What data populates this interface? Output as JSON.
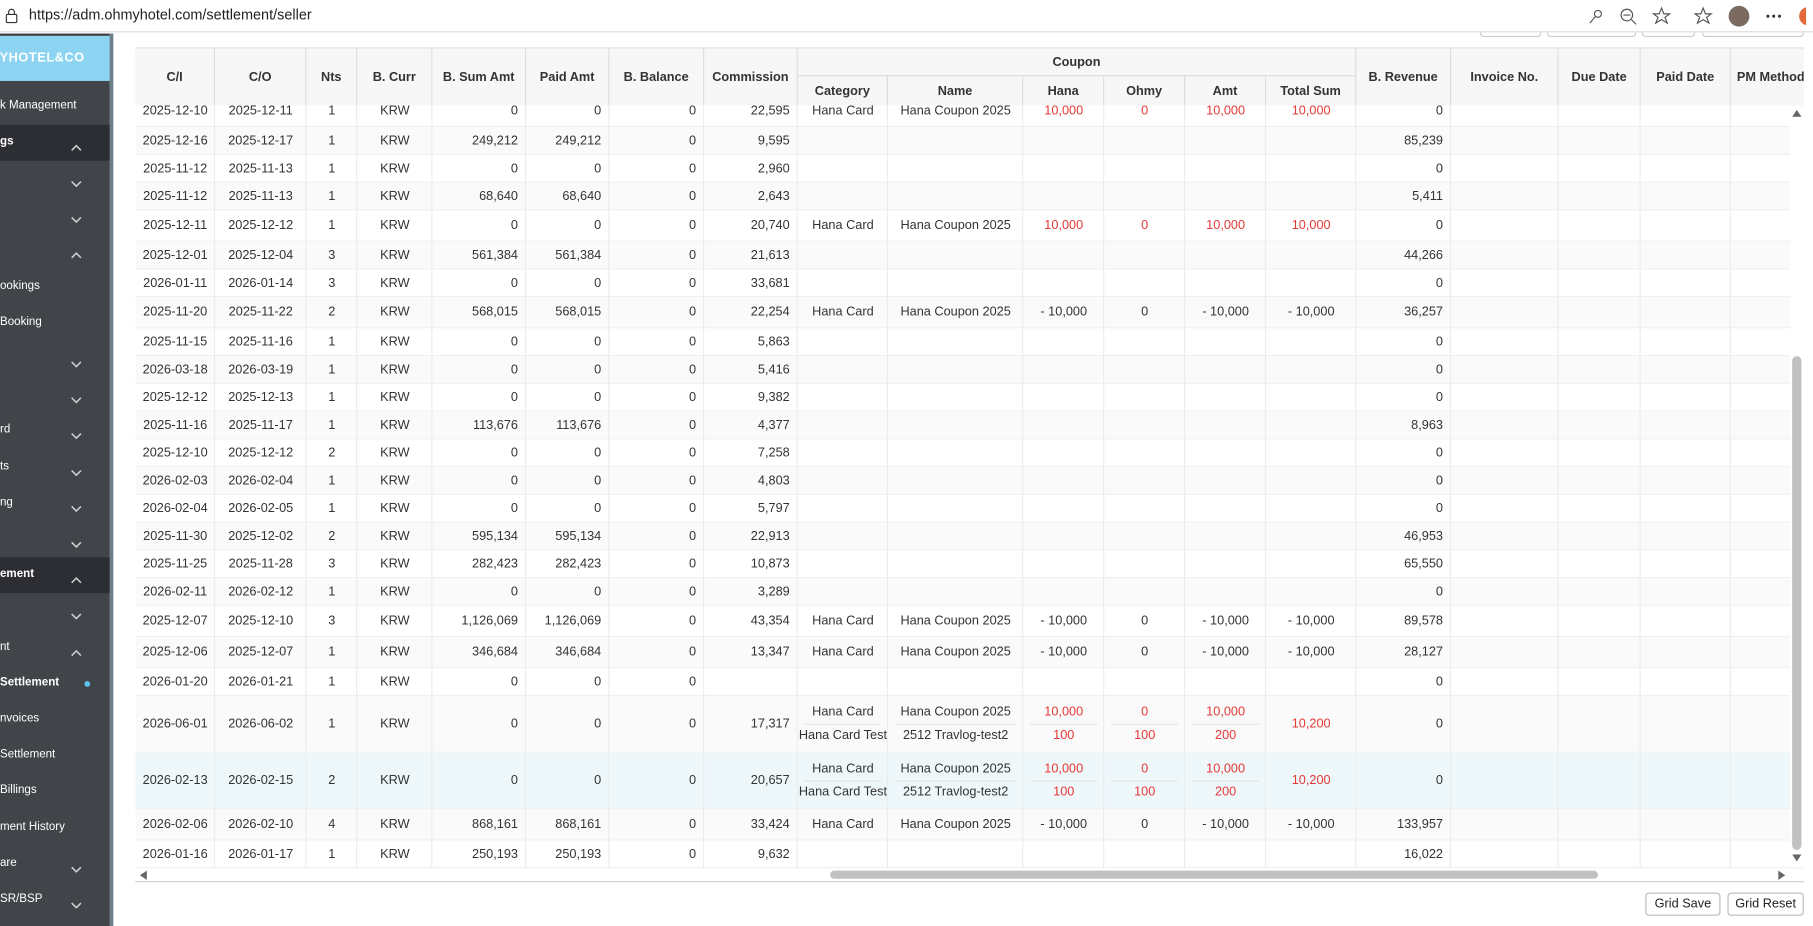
{
  "browser": {
    "url": "https://adm.ohmyhotel.com/settlement/seller"
  },
  "sidebar": {
    "logo": "MYHOTEL&CO",
    "items": [
      {
        "label": "k Management"
      },
      {
        "label": "gs",
        "chevron": "up",
        "section": true
      },
      {
        "chevron": "down"
      },
      {
        "chevron": "down"
      },
      {
        "chevron": "up"
      },
      {
        "label": "ookings"
      },
      {
        "label": "Booking"
      },
      {
        "chevron": "down"
      },
      {
        "chevron": "down"
      },
      {
        "label": "rd",
        "chevron": "down"
      },
      {
        "label": "ts",
        "chevron": "down"
      },
      {
        "label": "ng",
        "chevron": "down"
      },
      {
        "chevron": "down"
      },
      {
        "label": "ement",
        "chevron": "up",
        "section": true
      },
      {
        "chevron": "down"
      },
      {
        "label": "nt",
        "chevron": "up"
      },
      {
        "label": "Settlement",
        "active": true
      },
      {
        "label": "nvoices"
      },
      {
        "label": "Settlement"
      },
      {
        "label": "Billings"
      },
      {
        "label": "ment History"
      },
      {
        "label": "are",
        "chevron": "down"
      },
      {
        "label": "SR/BSP",
        "chevron": "down"
      }
    ]
  },
  "table": {
    "headers": [
      "C/I",
      "C/O",
      "Nts",
      "B. Curr",
      "B. Sum Amt",
      "Paid Amt",
      "B. Balance",
      "Commission"
    ],
    "coupon_title": "Coupon",
    "coupon_headers": [
      "Category",
      "Name",
      "Hana",
      "Ohmy",
      "Amt",
      "Total Sum"
    ],
    "right_headers": [
      "B. Revenue",
      "Invoice No.",
      "Due Date",
      "Paid Date",
      "PM Method"
    ],
    "rows": [
      {
        "cells": [
          "2025-12-10",
          "2025-12-11",
          "1",
          "KRW",
          "0",
          "0",
          "0",
          "22,595"
        ],
        "coupons": [
          {
            "category": "Hana Card",
            "name": "Hana Coupon 2025",
            "hana": "10,000",
            "ohmy": "0",
            "amt": "10,000"
          }
        ],
        "total_sum": "10,000",
        "coupon_color": "#e53935",
        "revenue": "0"
      },
      {
        "cells": [
          "2025-12-16",
          "2025-12-17",
          "1",
          "KRW",
          "249,212",
          "249,212",
          "0",
          "9,595"
        ],
        "revenue": "85,239"
      },
      {
        "cells": [
          "2025-11-12",
          "2025-11-13",
          "1",
          "KRW",
          "0",
          "0",
          "0",
          "2,960"
        ],
        "revenue": "0"
      },
      {
        "cells": [
          "2025-11-12",
          "2025-11-13",
          "1",
          "KRW",
          "68,640",
          "68,640",
          "0",
          "2,643"
        ],
        "revenue": "5,411"
      },
      {
        "cells": [
          "2025-12-11",
          "2025-12-12",
          "1",
          "KRW",
          "0",
          "0",
          "0",
          "20,740"
        ],
        "coupons": [
          {
            "category": "Hana Card",
            "name": "Hana Coupon 2025",
            "hana": "10,000",
            "ohmy": "0",
            "amt": "10,000"
          }
        ],
        "total_sum": "10,000",
        "coupon_color": "#e53935",
        "revenue": "0"
      },
      {
        "cells": [
          "2025-12-01",
          "2025-12-04",
          "3",
          "KRW",
          "561,384",
          "561,384",
          "0",
          "21,613"
        ],
        "revenue": "44,266"
      },
      {
        "cells": [
          "2026-01-11",
          "2026-01-14",
          "3",
          "KRW",
          "0",
          "0",
          "0",
          "33,681"
        ],
        "revenue": "0"
      },
      {
        "cells": [
          "2025-11-20",
          "2025-11-22",
          "2",
          "KRW",
          "568,015",
          "568,015",
          "0",
          "22,254"
        ],
        "coupons": [
          {
            "category": "Hana Card",
            "name": "Hana Coupon 2025",
            "hana": "- 10,000",
            "ohmy": "0",
            "amt": "- 10,000"
          }
        ],
        "total_sum": "- 10,000",
        "revenue": "36,257"
      },
      {
        "cells": [
          "2025-11-15",
          "2025-11-16",
          "1",
          "KRW",
          "0",
          "0",
          "0",
          "5,863"
        ],
        "revenue": "0"
      },
      {
        "cells": [
          "2026-03-18",
          "2026-03-19",
          "1",
          "KRW",
          "0",
          "0",
          "0",
          "5,416"
        ],
        "revenue": "0"
      },
      {
        "cells": [
          "2025-12-12",
          "2025-12-13",
          "1",
          "KRW",
          "0",
          "0",
          "0",
          "9,382"
        ],
        "revenue": "0"
      },
      {
        "cells": [
          "2025-11-16",
          "2025-11-17",
          "1",
          "KRW",
          "113,676",
          "113,676",
          "0",
          "4,377"
        ],
        "revenue": "8,963"
      },
      {
        "cells": [
          "2025-12-10",
          "2025-12-12",
          "2",
          "KRW",
          "0",
          "0",
          "0",
          "7,258"
        ],
        "revenue": "0"
      },
      {
        "cells": [
          "2026-02-03",
          "2026-02-04",
          "1",
          "KRW",
          "0",
          "0",
          "0",
          "4,803"
        ],
        "revenue": "0"
      },
      {
        "cells": [
          "2026-02-04",
          "2026-02-05",
          "1",
          "KRW",
          "0",
          "0",
          "0",
          "5,797"
        ],
        "revenue": "0"
      },
      {
        "cells": [
          "2025-11-30",
          "2025-12-02",
          "2",
          "KRW",
          "595,134",
          "595,134",
          "0",
          "22,913"
        ],
        "revenue": "46,953"
      },
      {
        "cells": [
          "2025-11-25",
          "2025-11-28",
          "3",
          "KRW",
          "282,423",
          "282,423",
          "0",
          "10,873"
        ],
        "revenue": "65,550"
      },
      {
        "cells": [
          "2026-02-11",
          "2026-02-12",
          "1",
          "KRW",
          "0",
          "0",
          "0",
          "3,289"
        ],
        "revenue": "0"
      },
      {
        "cells": [
          "2025-12-07",
          "2025-12-10",
          "3",
          "KRW",
          "1,126,069",
          "1,126,069",
          "0",
          "43,354"
        ],
        "coupons": [
          {
            "category": "Hana Card",
            "name": "Hana Coupon 2025",
            "hana": "- 10,000",
            "ohmy": "0",
            "amt": "- 10,000"
          }
        ],
        "total_sum": "- 10,000",
        "revenue": "89,578"
      },
      {
        "cells": [
          "2025-12-06",
          "2025-12-07",
          "1",
          "KRW",
          "346,684",
          "346,684",
          "0",
          "13,347"
        ],
        "coupons": [
          {
            "category": "Hana Card",
            "name": "Hana Coupon 2025",
            "hana": "- 10,000",
            "ohmy": "0",
            "amt": "- 10,000"
          }
        ],
        "total_sum": "- 10,000",
        "revenue": "28,127"
      },
      {
        "cells": [
          "2026-01-20",
          "2026-01-21",
          "1",
          "KRW",
          "0",
          "0",
          "0",
          null
        ],
        "revenue": "0"
      },
      {
        "cells": [
          "2026-06-01",
          "2026-06-02",
          "1",
          "KRW",
          "0",
          "0",
          "0",
          "17,317"
        ],
        "coupons": [
          {
            "category": "Hana Card",
            "name": "Hana Coupon 2025",
            "hana": "10,000",
            "ohmy": "0",
            "amt": "10,000"
          },
          {
            "category": "Hana Card Test",
            "name": "2512 Travlog-test2",
            "hana": "100",
            "ohmy": "100",
            "amt": "200"
          }
        ],
        "total_sum": "10,200",
        "coupon_color": "#e53935",
        "revenue": "0"
      },
      {
        "cells": [
          "2026-02-13",
          "2026-02-15",
          "2",
          "KRW",
          "0",
          "0",
          "0",
          "20,657"
        ],
        "coupons": [
          {
            "category": "Hana Card",
            "name": "Hana Coupon 2025",
            "hana": "10,000",
            "ohmy": "0",
            "amt": "10,000"
          },
          {
            "category": "Hana Card Test",
            "name": "2512 Travlog-test2",
            "hana": "100",
            "ohmy": "100",
            "amt": "200"
          }
        ],
        "total_sum": "10,200",
        "coupon_color": "#e53935",
        "revenue": "0",
        "selected": true
      },
      {
        "cells": [
          "2026-02-06",
          "2026-02-10",
          "4",
          "KRW",
          "868,161",
          "868,161",
          "0",
          "33,424"
        ],
        "coupons": [
          {
            "category": "Hana Card",
            "name": "Hana Coupon 2025",
            "hana": "- 10,000",
            "ohmy": "0",
            "amt": "- 10,000"
          }
        ],
        "total_sum": "- 10,000",
        "revenue": "133,957"
      },
      {
        "cells": [
          "2026-01-16",
          "2026-01-17",
          "1",
          "KRW",
          "250,193",
          "250,193",
          "0",
          "9,632"
        ],
        "revenue": "16,022"
      }
    ]
  },
  "buttons": [
    "Grid Save",
    "Grid Reset"
  ]
}
